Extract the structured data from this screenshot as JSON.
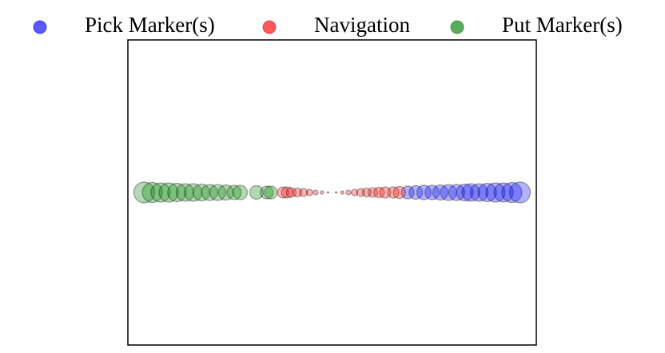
{
  "chart_data": {
    "type": "scatter",
    "xlim": [
      -1,
      1
    ],
    "ylim": [
      -1,
      1
    ],
    "legend": "top",
    "series": [
      {
        "name": "Pick Marker(s)",
        "color": "#0000ff",
        "x": [
          0.37,
          0.41,
          0.45,
          0.49,
          0.53,
          0.57,
          0.61,
          0.65,
          0.68,
          0.72,
          0.76,
          0.8,
          0.84,
          0.88,
          0.92
        ],
        "values": [
          0,
          0,
          0,
          0,
          0,
          0,
          0,
          0,
          0,
          0,
          0,
          0,
          0,
          0,
          0
        ],
        "sizes": [
          8,
          8.5,
          9,
          9,
          9.5,
          10,
          10,
          10.5,
          11,
          11,
          11.5,
          12,
          12,
          12.5,
          13
        ]
      },
      {
        "name": "Navigation",
        "color": "#ff0000",
        "x": [
          -0.24,
          -0.22,
          -0.2,
          -0.17,
          -0.14,
          -0.11,
          -0.08,
          -0.05,
          -0.02,
          0.02,
          0.05,
          0.08,
          0.11,
          0.14,
          0.17,
          0.2,
          0.23,
          0.26,
          0.3,
          0.33
        ],
        "values": [
          0,
          0,
          0,
          0,
          0,
          0,
          0,
          0,
          0,
          0,
          0,
          0,
          0,
          0,
          0,
          0,
          0,
          0,
          0,
          0
        ],
        "sizes": [
          7,
          7,
          6,
          5.5,
          5,
          4,
          3,
          2,
          1,
          1,
          2,
          3,
          4,
          5,
          5.5,
          6,
          6.5,
          7,
          7,
          7.5
        ]
      },
      {
        "name": "Put Marker(s)",
        "color": "#008000",
        "x": [
          -0.92,
          -0.88,
          -0.84,
          -0.8,
          -0.76,
          -0.72,
          -0.68,
          -0.64,
          -0.6,
          -0.56,
          -0.52,
          -0.48,
          -0.45,
          -0.37,
          -0.32,
          -0.3
        ],
        "values": [
          0,
          0,
          0,
          0,
          0,
          0,
          0,
          0,
          0,
          0,
          0,
          0,
          0,
          0,
          0,
          0
        ],
        "sizes": [
          13,
          12.5,
          12,
          12,
          11.5,
          11,
          11,
          10.5,
          10,
          10,
          9.5,
          9,
          9,
          8.5,
          8,
          8
        ]
      }
    ]
  }
}
